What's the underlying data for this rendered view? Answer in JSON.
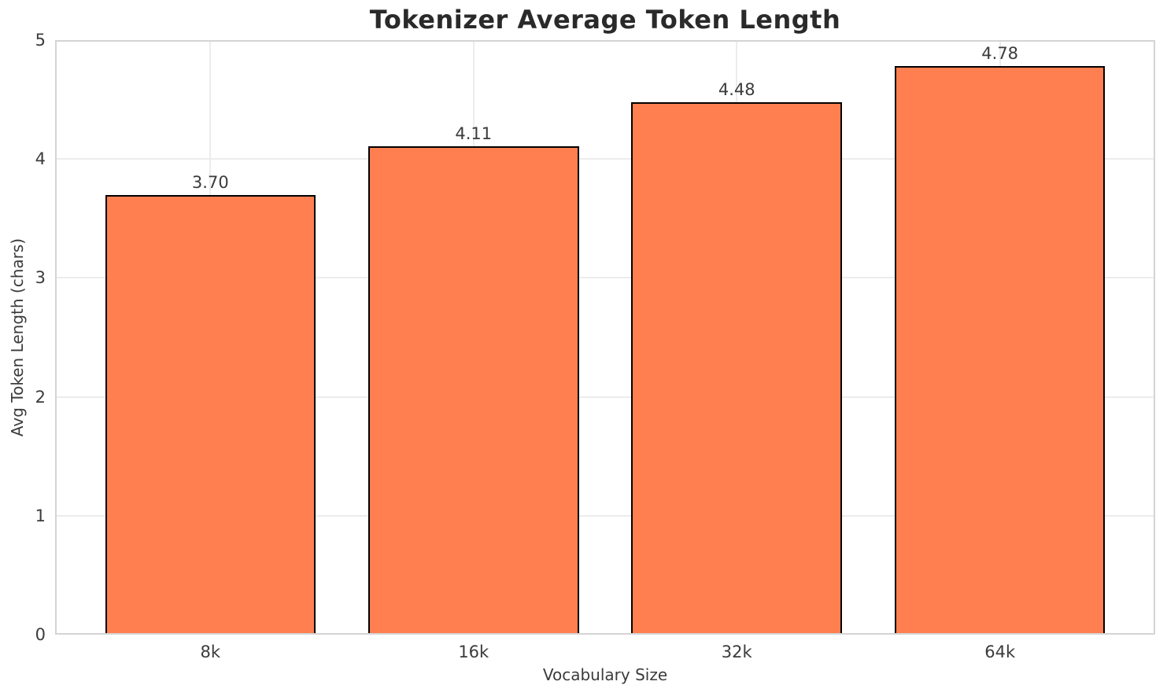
{
  "chart_data": {
    "type": "bar",
    "title": "Tokenizer Average Token Length",
    "xlabel": "Vocabulary Size",
    "ylabel": "Avg Token Length (chars)",
    "categories": [
      "8k",
      "16k",
      "32k",
      "64k"
    ],
    "values": [
      3.7,
      4.11,
      4.48,
      4.78
    ],
    "value_labels": [
      "3.70",
      "4.11",
      "4.48",
      "4.78"
    ],
    "ylim": [
      0,
      5
    ],
    "yticks": [
      "0",
      "1",
      "2",
      "3",
      "4",
      "5"
    ],
    "grid": true,
    "legend_position": "none",
    "colors": {
      "bar_fill": "#FF7F50",
      "bar_edge": "#000000",
      "grid_line": "#ececec",
      "spine": "#d4d4d4",
      "title_text": "#2a2a2a",
      "tick_text": "#3b3b3b"
    }
  }
}
